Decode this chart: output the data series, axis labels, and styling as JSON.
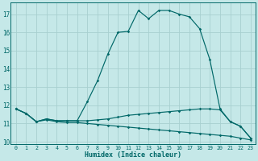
{
  "xlabel": "Humidex (Indice chaleur)",
  "bg_color": "#c5e8e8",
  "grid_color": "#a8d0d0",
  "line_color": "#006868",
  "x": [
    0,
    1,
    2,
    3,
    4,
    5,
    6,
    7,
    8,
    9,
    10,
    11,
    12,
    13,
    14,
    15,
    16,
    17,
    18,
    19,
    20,
    21,
    22,
    23
  ],
  "line_main": [
    11.8,
    11.55,
    11.1,
    11.25,
    11.15,
    11.15,
    11.15,
    12.2,
    13.35,
    14.8,
    16.0,
    16.05,
    17.2,
    16.75,
    17.2,
    17.2,
    17.0,
    16.85,
    16.2,
    14.5,
    11.8,
    11.1,
    10.85,
    10.2
  ],
  "line_upper": [
    11.8,
    11.55,
    11.1,
    11.25,
    11.15,
    11.15,
    11.15,
    11.15,
    11.2,
    11.25,
    11.35,
    11.45,
    11.5,
    11.55,
    11.6,
    11.65,
    11.7,
    11.75,
    11.8,
    11.8,
    11.75,
    11.1,
    10.85,
    10.2
  ],
  "line_lower": [
    11.8,
    11.55,
    11.1,
    11.2,
    11.1,
    11.05,
    11.05,
    11.0,
    10.95,
    10.9,
    10.85,
    10.8,
    10.75,
    10.7,
    10.65,
    10.6,
    10.55,
    10.5,
    10.45,
    10.4,
    10.35,
    10.3,
    10.2,
    10.1
  ],
  "ylim_min": 9.85,
  "ylim_max": 17.65,
  "yticks": [
    10,
    11,
    12,
    13,
    14,
    15,
    16,
    17
  ],
  "xlim_min": -0.5,
  "xlim_max": 23.5
}
